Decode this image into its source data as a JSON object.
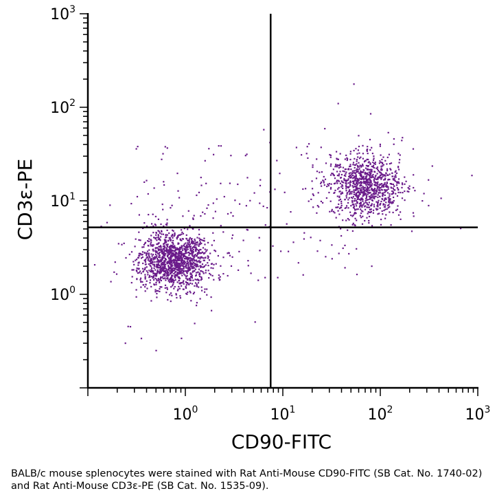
{
  "chart_data": {
    "type": "scatter",
    "xlabel": "CD90-FITC",
    "ylabel": "CD3ε-PE",
    "x_scale": "log",
    "y_scale": "log",
    "xlim": [
      0.1,
      1000
    ],
    "ylim": [
      0.1,
      1000
    ],
    "x_ticks": [
      {
        "base": "10",
        "exp": "0",
        "value": 1
      },
      {
        "base": "10",
        "exp": "1",
        "value": 10
      },
      {
        "base": "10",
        "exp": "2",
        "value": 100
      },
      {
        "base": "10",
        "exp": "3",
        "value": 1000
      }
    ],
    "y_ticks": [
      {
        "base": "10",
        "exp": "0",
        "value": 1
      },
      {
        "base": "10",
        "exp": "1",
        "value": 10
      },
      {
        "base": "10",
        "exp": "2",
        "value": 100
      },
      {
        "base": "10",
        "exp": "3",
        "value": 1000
      }
    ],
    "quadrant_gates": {
      "x": 7.5,
      "y": 5.2
    },
    "point_color": "#6a1b8a",
    "populations": [
      {
        "center": [
          0.75,
          2.3
        ],
        "count": 1400
      },
      {
        "center": [
          70,
          15
        ],
        "count": 1000
      }
    ]
  },
  "caption": "BALB/c mouse splenocytes were stained with Rat Anti-Mouse CD90-FITC (SB Cat. No. 1740-02) and Rat Anti-Mouse CD3ε-PE (SB Cat. No. 1535-09)."
}
